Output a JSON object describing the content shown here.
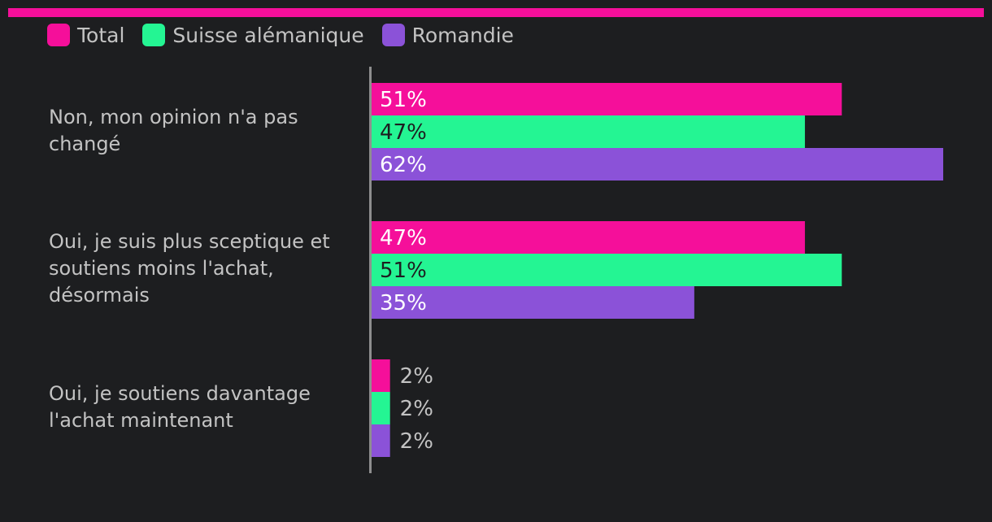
{
  "colors": {
    "background": "#1d1e20",
    "top_bar": "#f50f9a",
    "label": "#c3c3c3",
    "axis": "#8e8e8e"
  },
  "chart_data": {
    "type": "bar",
    "orientation": "horizontal",
    "categories": [
      "Non, mon opinion n'a pas\nchangé",
      "Oui, je suis plus sceptique et\nsoutiens moins l'achat,\ndésormais",
      "Oui, je soutiens davantage\nl'achat maintenant"
    ],
    "series": [
      {
        "name": "Total",
        "color": "#f50f9a",
        "label_color": "#ffffff",
        "values": [
          51,
          47,
          2
        ]
      },
      {
        "name": "Suisse alémanique",
        "color": "#24f593",
        "label_color": "#1d1e20",
        "values": [
          47,
          51,
          2
        ]
      },
      {
        "name": "Romandie",
        "color": "#8b52d8",
        "label_color": "#ffffff",
        "values": [
          62,
          35,
          2
        ]
      }
    ],
    "value_suffix": "%",
    "xlim": [
      0,
      62
    ],
    "legend_position": "top-left",
    "grid": false
  }
}
